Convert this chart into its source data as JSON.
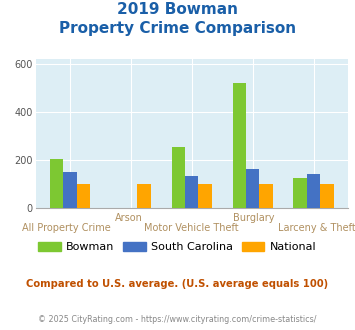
{
  "title_line1": "2019 Bowman",
  "title_line2": "Property Crime Comparison",
  "categories": [
    "All Property Crime",
    "Arson",
    "Motor Vehicle Theft",
    "Burglary",
    "Larceny & Theft"
  ],
  "x_labels_top": [
    "",
    "Arson",
    "",
    "Burglary",
    ""
  ],
  "x_labels_bottom": [
    "All Property Crime",
    "",
    "Motor Vehicle Theft",
    "",
    "Larceny & Theft"
  ],
  "bowman": [
    205,
    0,
    255,
    520,
    125
  ],
  "south_carolina": [
    148,
    0,
    135,
    163,
    143
  ],
  "national": [
    100,
    100,
    100,
    100,
    100
  ],
  "bowman_color": "#7dc832",
  "sc_color": "#4472c4",
  "national_color": "#ffa500",
  "bg_color": "#ddeef5",
  "title_color": "#1a5fa8",
  "xlabel_color_top": "#b09060",
  "xlabel_color_bot": "#b09060",
  "ylim": [
    0,
    620
  ],
  "yticks": [
    0,
    200,
    400,
    600
  ],
  "legend_labels": [
    "Bowman",
    "South Carolina",
    "National"
  ],
  "footer_text": "Compared to U.S. average. (U.S. average equals 100)",
  "copyright_text": "© 2025 CityRating.com - https://www.cityrating.com/crime-statistics/",
  "footer_color": "#c05000",
  "copyright_color": "#888888"
}
